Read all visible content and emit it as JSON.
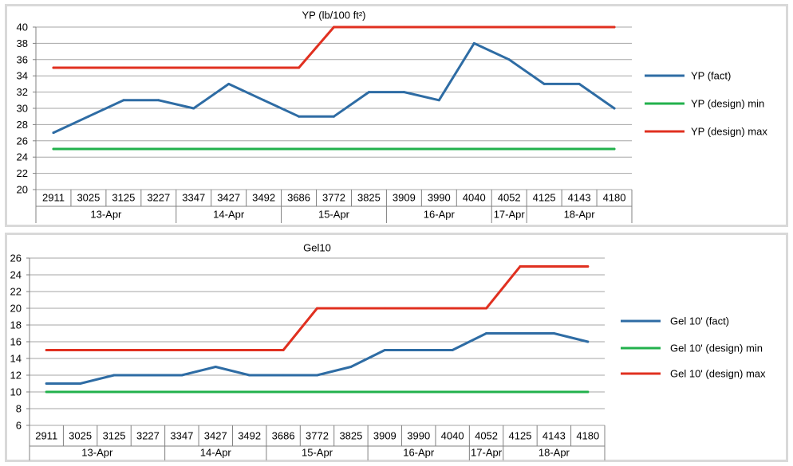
{
  "chart_data": [
    {
      "type": "line",
      "title": "YP (lb/100 ft²)",
      "ylim": [
        20,
        40
      ],
      "ytick_step": 2,
      "grid": true,
      "legend_position": "right",
      "x": [
        "2911",
        "3025",
        "3125",
        "3227",
        "3347",
        "3427",
        "3492",
        "3686",
        "3772",
        "3825",
        "3909",
        "3990",
        "4040",
        "4052",
        "4125",
        "4143",
        "4180"
      ],
      "date_groups": [
        {
          "label": "13-Apr",
          "count": 4
        },
        {
          "label": "14-Apr",
          "count": 3
        },
        {
          "label": "15-Apr",
          "count": 3
        },
        {
          "label": "16-Apr",
          "count": 3
        },
        {
          "label": "17-Apr",
          "count": 1
        },
        {
          "label": "18-Apr",
          "count": 3
        }
      ],
      "series": [
        {
          "name": "YP (fact)",
          "color": "#2e6ca4",
          "values": [
            27,
            29,
            31,
            31,
            30,
            33,
            31,
            29,
            29,
            32,
            32,
            31,
            38,
            36,
            33,
            33,
            30
          ]
        },
        {
          "name": "YP (design) min",
          "color": "#22b14c",
          "values": [
            25,
            25,
            25,
            25,
            25,
            25,
            25,
            25,
            25,
            25,
            25,
            25,
            25,
            25,
            25,
            25,
            25
          ]
        },
        {
          "name": "YP (design) max",
          "color": "#e03020",
          "values": [
            35,
            35,
            35,
            35,
            35,
            35,
            35,
            35,
            40,
            40,
            40,
            40,
            40,
            40,
            40,
            40,
            40
          ]
        }
      ]
    },
    {
      "type": "line",
      "title": "Gel10",
      "ylim": [
        6,
        26
      ],
      "ytick_step": 2,
      "grid": true,
      "legend_position": "right",
      "x": [
        "2911",
        "3025",
        "3125",
        "3227",
        "3347",
        "3427",
        "3492",
        "3686",
        "3772",
        "3825",
        "3909",
        "3990",
        "4040",
        "4052",
        "4125",
        "4143",
        "4180"
      ],
      "date_groups": [
        {
          "label": "13-Apr",
          "count": 4
        },
        {
          "label": "14-Apr",
          "count": 3
        },
        {
          "label": "15-Apr",
          "count": 3
        },
        {
          "label": "16-Apr",
          "count": 3
        },
        {
          "label": "17-Apr",
          "count": 1
        },
        {
          "label": "18-Apr",
          "count": 3
        }
      ],
      "series": [
        {
          "name": "Gel 10' (fact)",
          "color": "#2e6ca4",
          "values": [
            11,
            11,
            12,
            12,
            12,
            13,
            12,
            12,
            12,
            13,
            15,
            15,
            15,
            17,
            17,
            17,
            16
          ]
        },
        {
          "name": "Gel 10'  (design) min",
          "color": "#22b14c",
          "values": [
            10,
            10,
            10,
            10,
            10,
            10,
            10,
            10,
            10,
            10,
            10,
            10,
            10,
            10,
            10,
            10,
            10
          ]
        },
        {
          "name": "Gel 10'  (design) max",
          "color": "#e03020",
          "values": [
            15,
            15,
            15,
            15,
            15,
            15,
            15,
            15,
            20,
            20,
            20,
            20,
            20,
            20,
            25,
            25,
            25
          ]
        }
      ]
    }
  ]
}
